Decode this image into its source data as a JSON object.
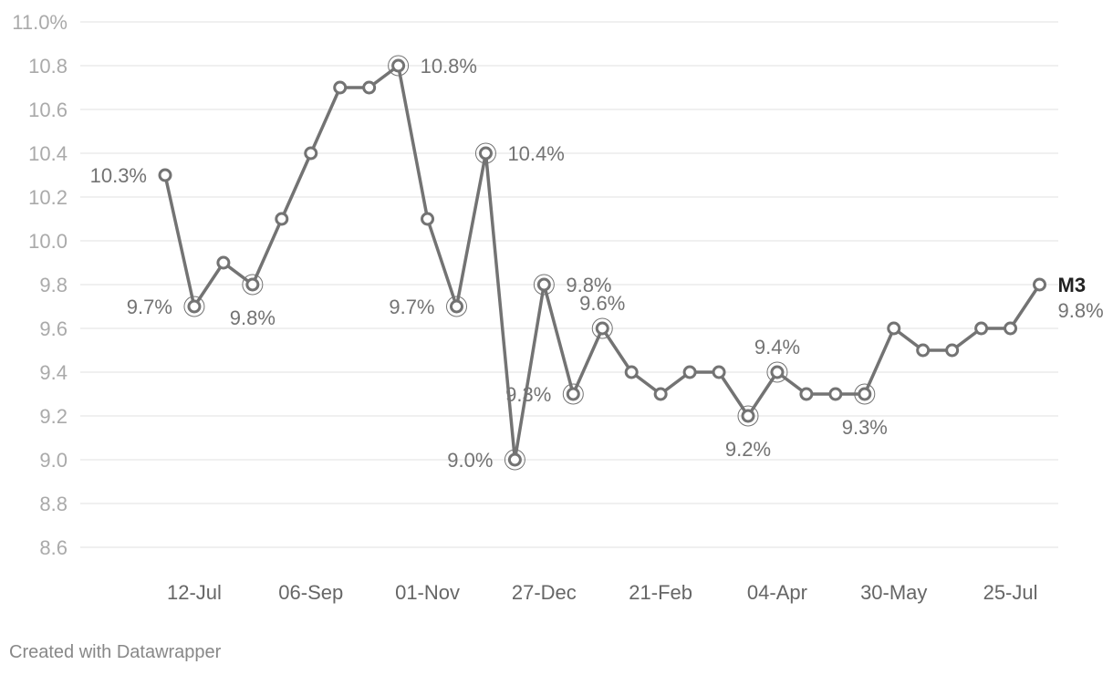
{
  "chart_data": {
    "type": "line",
    "title": "",
    "xlabel": "",
    "ylabel": "",
    "ylim": [
      8.6,
      11.0
    ],
    "yticks": [
      {
        "value": 8.6,
        "label": "8.6"
      },
      {
        "value": 8.8,
        "label": "8.8"
      },
      {
        "value": 9.0,
        "label": "9.0"
      },
      {
        "value": 9.2,
        "label": "9.2"
      },
      {
        "value": 9.4,
        "label": "9.4"
      },
      {
        "value": 9.6,
        "label": "9.6"
      },
      {
        "value": 9.8,
        "label": "9.8"
      },
      {
        "value": 10.0,
        "label": "10.0"
      },
      {
        "value": 10.2,
        "label": "10.2"
      },
      {
        "value": 10.4,
        "label": "10.4"
      },
      {
        "value": 10.6,
        "label": "10.6"
      },
      {
        "value": 10.8,
        "label": "10.8"
      },
      {
        "value": 11.0,
        "label": "11.0%"
      }
    ],
    "xticks": [
      "12-Jul",
      "06-Sep",
      "01-Nov",
      "27-Dec",
      "21-Feb",
      "04-Apr",
      "30-May",
      "25-Jul"
    ],
    "xtick_indices": [
      1,
      5,
      9,
      13,
      17,
      21,
      25,
      29
    ],
    "grid": true,
    "legend": "none",
    "series": [
      {
        "name": "M3",
        "color": "#737373",
        "values": [
          10.3,
          9.7,
          9.9,
          9.8,
          10.1,
          10.4,
          10.7,
          10.7,
          10.8,
          10.1,
          9.7,
          10.4,
          9.0,
          9.8,
          9.3,
          9.6,
          9.4,
          9.3,
          9.4,
          9.4,
          9.2,
          9.4,
          9.3,
          9.3,
          9.3,
          9.6,
          9.5,
          9.5,
          9.6,
          9.6,
          9.8
        ]
      }
    ],
    "annotations": [
      {
        "index": 0,
        "text": "10.3%",
        "highlight": false
      },
      {
        "index": 1,
        "text": "9.7%",
        "highlight": true
      },
      {
        "index": 3,
        "text": "9.8%",
        "highlight": true
      },
      {
        "index": 8,
        "text": "10.8%",
        "highlight": true
      },
      {
        "index": 10,
        "text": "9.7%",
        "highlight": true
      },
      {
        "index": 11,
        "text": "10.4%",
        "highlight": true
      },
      {
        "index": 12,
        "text": "9.0%",
        "highlight": true
      },
      {
        "index": 13,
        "text": "9.8%",
        "highlight": true
      },
      {
        "index": 14,
        "text": "9.3%",
        "highlight": true
      },
      {
        "index": 15,
        "text": "9.6%",
        "highlight": true
      },
      {
        "index": 20,
        "text": "9.2%",
        "highlight": true
      },
      {
        "index": 21,
        "text": "9.4%",
        "highlight": true
      },
      {
        "index": 24,
        "text": "9.3%",
        "highlight": true
      },
      {
        "index": 30,
        "text": "9.8%",
        "highlight": false
      }
    ]
  },
  "footer": {
    "credit": "Created with Datawrapper"
  }
}
